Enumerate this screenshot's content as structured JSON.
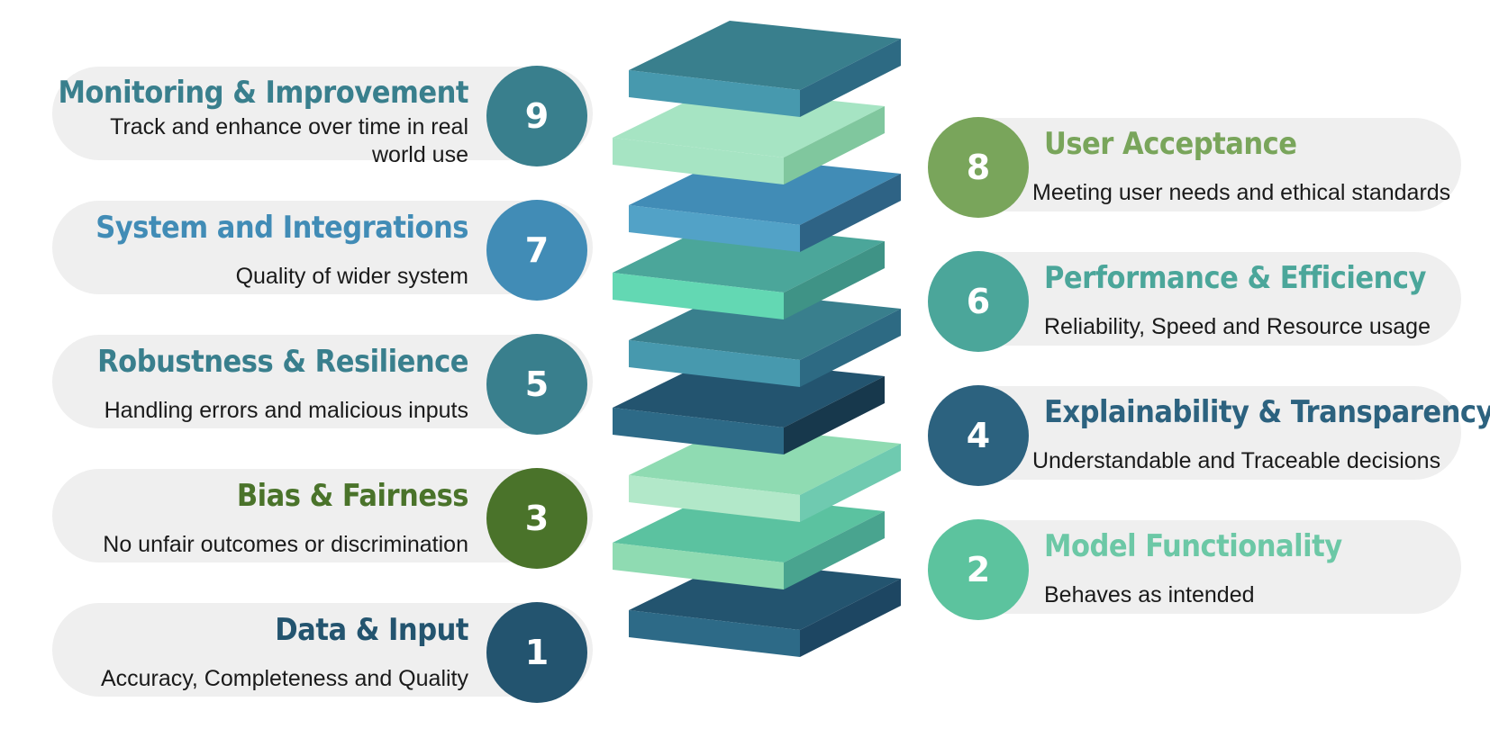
{
  "layers": [
    {
      "num": "1",
      "title": "Data & Input",
      "desc": "Accuracy, Completeness and Quality",
      "color": "#23546f"
    },
    {
      "num": "2",
      "title": "Model Functionality",
      "desc": "Behaves as intended",
      "color": "#5cc39e"
    },
    {
      "num": "3",
      "title": "Bias & Fairness",
      "desc": "No unfair outcomes or discrimination",
      "color": "#4a732a"
    },
    {
      "num": "4",
      "title": "Explainability & Transparency",
      "desc": "Understandable and Traceable decisions",
      "color": "#2c627f"
    },
    {
      "num": "5",
      "title": "Robustness & Resilience",
      "desc": "Handling errors and malicious inputs",
      "color": "#397f8d"
    },
    {
      "num": "6",
      "title": "Performance & Efficiency",
      "desc": "Reliability, Speed and Resource usage",
      "color": "#4ba69a"
    },
    {
      "num": "7",
      "title": "System and Integrations",
      "desc": "Quality of wider system",
      "color": "#418cb6"
    },
    {
      "num": "8",
      "title": "User Acceptance",
      "desc": "Meeting user needs and ethical standards",
      "color": "#79a55b"
    },
    {
      "num": "9",
      "title": "Monitoring & Improvement",
      "desc": "Track and enhance over time in real world use",
      "color": "#397f8d"
    }
  ],
  "title_colors": {
    "1": "#23546f",
    "2": "#6cc8a6",
    "3": "#4a732a",
    "4": "#2c627f",
    "5": "#397f8d",
    "6": "#4ba69a",
    "7": "#418cb6",
    "8": "#79a55b",
    "9": "#397f8d"
  },
  "slab_colors": [
    {
      "top": "#23546f",
      "left": "#2d6a87",
      "right": "#1d4662"
    },
    {
      "top": "#5bc2a0",
      "left": "#8fdbb2",
      "right": "#49a48f"
    },
    {
      "top": "#8fdbb2",
      "left": "#b2e8c9",
      "right": "#6fcab0"
    },
    {
      "top": "#23546f",
      "left": "#2d6a87",
      "right": "#17384c"
    },
    {
      "top": "#397f8d",
      "left": "#4799ae",
      "right": "#2d6a83"
    },
    {
      "top": "#4ba69a",
      "left": "#63d8b3",
      "right": "#3f9386"
    },
    {
      "top": "#418cb6",
      "left": "#52a2c7",
      "right": "#2e6385"
    },
    {
      "top": "#a6e4c3",
      "left": "#a6e4c3",
      "right": "#80c79e"
    },
    {
      "top": "#397f8d",
      "left": "#4799ae",
      "right": "#2d6a83"
    }
  ]
}
